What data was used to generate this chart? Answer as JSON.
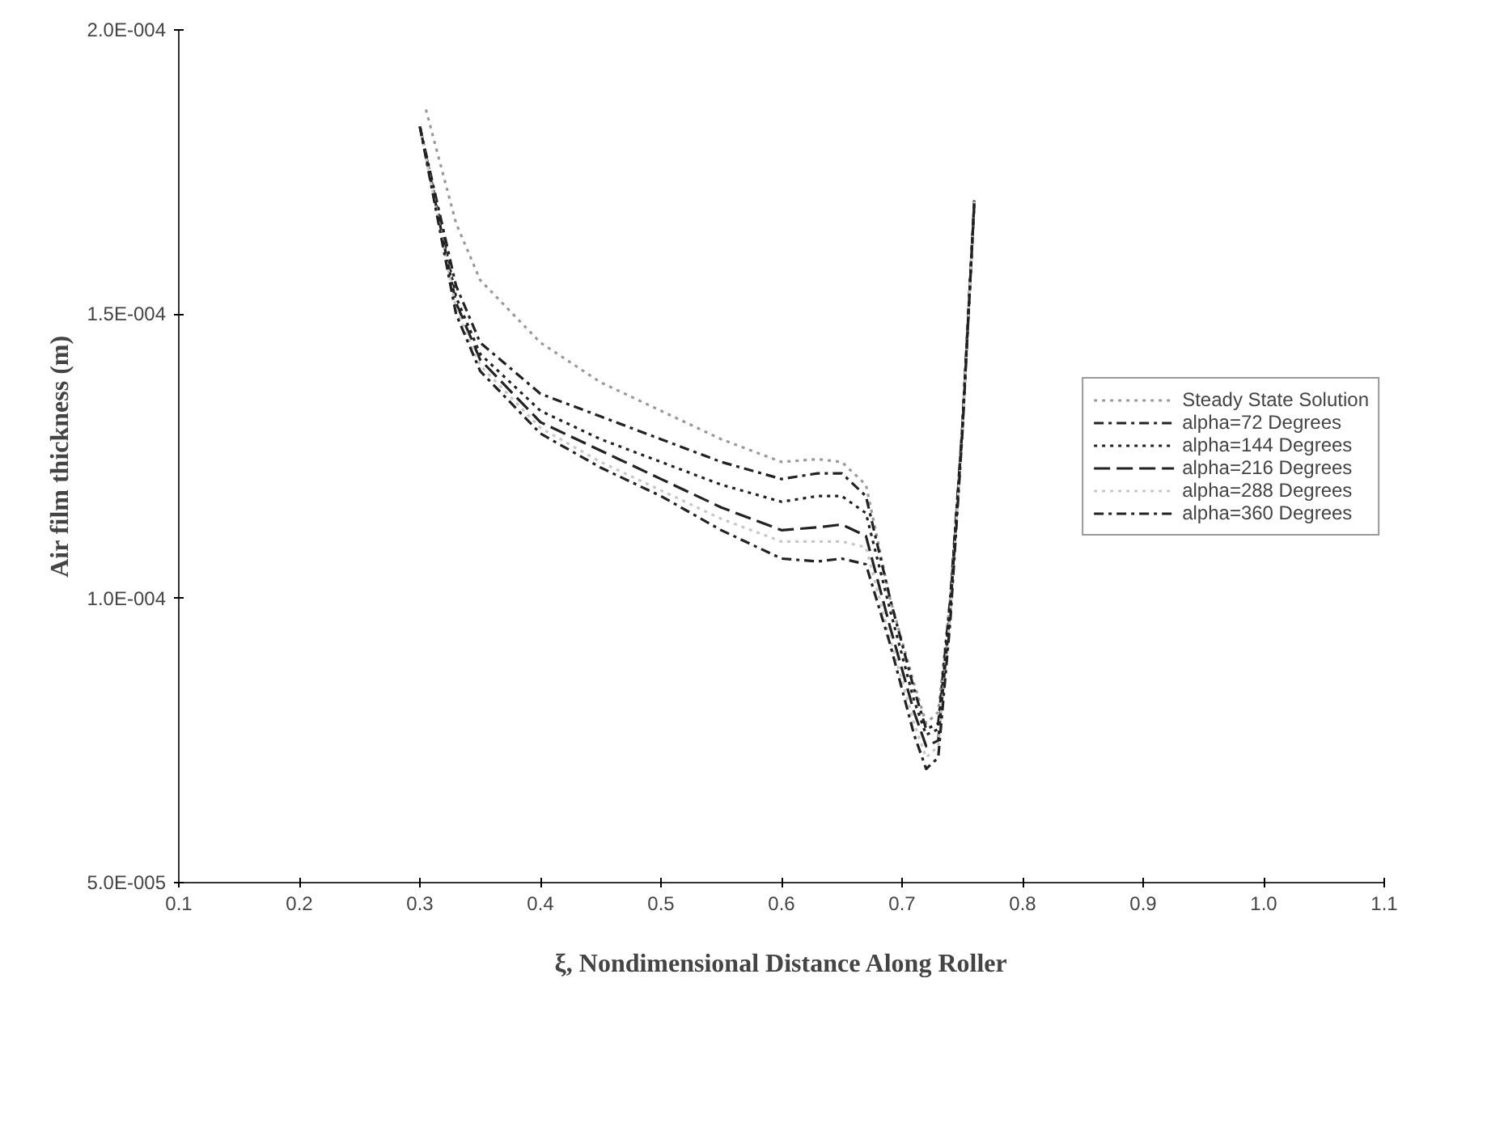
{
  "chart_data": {
    "type": "line",
    "xlabel": "ξ, Nondimensional Distance Along Roller",
    "ylabel": "Air film thickness (m)",
    "xlim": [
      0.1,
      1.1
    ],
    "xticks": [
      {
        "value": 0.1,
        "label": "0.1"
      },
      {
        "value": 0.2,
        "label": "0.2"
      },
      {
        "value": 0.3,
        "label": "0.3"
      },
      {
        "value": 0.4,
        "label": "0.4"
      },
      {
        "value": 0.5,
        "label": "0.5"
      },
      {
        "value": 0.6,
        "label": "0.6"
      },
      {
        "value": 0.7,
        "label": "0.7"
      },
      {
        "value": 0.8,
        "label": "0.8"
      },
      {
        "value": 0.9,
        "label": "0.9"
      },
      {
        "value": 1.0,
        "label": "1.0"
      },
      {
        "value": 1.1,
        "label": "1.1"
      }
    ],
    "ylim": [
      5e-05,
      0.0002
    ],
    "yticks": [
      {
        "value": 5e-05,
        "label": "5.0E-005"
      },
      {
        "value": 0.0001,
        "label": "1.0E-004"
      },
      {
        "value": 0.00015,
        "label": "1.5E-004"
      },
      {
        "value": 0.0002,
        "label": "2.0E-004"
      }
    ],
    "grid": false,
    "legend": "right",
    "x": [
      0.305,
      0.33,
      0.35,
      0.4,
      0.45,
      0.5,
      0.55,
      0.6,
      0.63,
      0.65,
      0.67,
      0.69,
      0.71,
      0.72,
      0.73,
      0.74,
      0.75,
      0.76
    ],
    "series": [
      {
        "name": "Steady State Solution",
        "color": "#9a9a9a",
        "line_style": "dotted",
        "values": [
          0.000186,
          0.000166,
          0.000156,
          0.000145,
          0.000138,
          0.000133,
          0.000128,
          0.000124,
          0.0001245,
          0.000124,
          0.00012,
          0.0001,
          8.5e-05,
          7.8e-05,
          8e-05,
          0.0001,
          0.00013,
          0.00017
        ]
      },
      {
        "name": "alpha=72 Degrees",
        "color": "#222222",
        "line_style": "dashdot",
        "x": [
          0.3,
          0.33,
          0.35,
          0.4,
          0.45,
          0.5,
          0.55,
          0.6,
          0.63,
          0.65,
          0.67,
          0.69,
          0.71,
          0.72,
          0.73,
          0.74,
          0.75,
          0.76
        ],
        "values": [
          0.000183,
          0.000155,
          0.000145,
          0.000136,
          0.000132,
          0.000128,
          0.000124,
          0.000121,
          0.000122,
          0.000122,
          0.000118,
          0.0001,
          8.4e-05,
          7.7e-05,
          7.8e-05,
          0.0001,
          0.00013,
          0.00017
        ]
      },
      {
        "name": "alpha=144 Degrees",
        "color": "#222222",
        "line_style": "dotted",
        "x": [
          0.3,
          0.33,
          0.35,
          0.4,
          0.45,
          0.5,
          0.55,
          0.6,
          0.63,
          0.65,
          0.67,
          0.69,
          0.71,
          0.72,
          0.73,
          0.74,
          0.75,
          0.76
        ],
        "values": [
          0.000183,
          0.000153,
          0.000143,
          0.000133,
          0.000128,
          0.000124,
          0.00012,
          0.000117,
          0.000118,
          0.000118,
          0.000115,
          9.8e-05,
          8.2e-05,
          7.6e-05,
          7.7e-05,
          9.9e-05,
          0.00013,
          0.00017
        ]
      },
      {
        "name": "alpha=216 Degrees",
        "color": "#222222",
        "line_style": "dashed",
        "x": [
          0.3,
          0.33,
          0.35,
          0.4,
          0.45,
          0.5,
          0.55,
          0.6,
          0.63,
          0.65,
          0.67,
          0.69,
          0.71,
          0.72,
          0.73,
          0.74,
          0.75,
          0.76
        ],
        "values": [
          0.000183,
          0.000152,
          0.000142,
          0.000131,
          0.000126,
          0.000121,
          0.000116,
          0.000112,
          0.0001125,
          0.000113,
          0.000111,
          9.5e-05,
          8e-05,
          7.4e-05,
          7.5e-05,
          9.8e-05,
          0.00013,
          0.00017
        ]
      },
      {
        "name": "alpha=288 Degrees",
        "color": "#c8c8c8",
        "line_style": "dotted",
        "x": [
          0.3,
          0.33,
          0.35,
          0.4,
          0.45,
          0.5,
          0.55,
          0.6,
          0.63,
          0.65,
          0.67,
          0.69,
          0.71,
          0.72,
          0.73,
          0.74,
          0.75,
          0.76
        ],
        "values": [
          0.000183,
          0.000151,
          0.000141,
          0.00013,
          0.000124,
          0.000119,
          0.000114,
          0.00011,
          0.00011,
          0.00011,
          0.000109,
          9.3e-05,
          7.8e-05,
          7.2e-05,
          7.4e-05,
          9.7e-05,
          0.000129,
          0.00017
        ]
      },
      {
        "name": "alpha=360 Degrees",
        "color": "#222222",
        "line_style": "dashdot",
        "x": [
          0.3,
          0.33,
          0.35,
          0.4,
          0.45,
          0.5,
          0.55,
          0.6,
          0.63,
          0.65,
          0.67,
          0.69,
          0.71,
          0.72,
          0.73,
          0.74,
          0.75,
          0.76
        ],
        "values": [
          0.000183,
          0.00015,
          0.00014,
          0.000129,
          0.000123,
          0.000118,
          0.000112,
          0.000107,
          0.0001065,
          0.000107,
          0.000106,
          9.2e-05,
          7.6e-05,
          7e-05,
          7.2e-05,
          9.6e-05,
          0.000129,
          0.00017
        ]
      }
    ]
  }
}
